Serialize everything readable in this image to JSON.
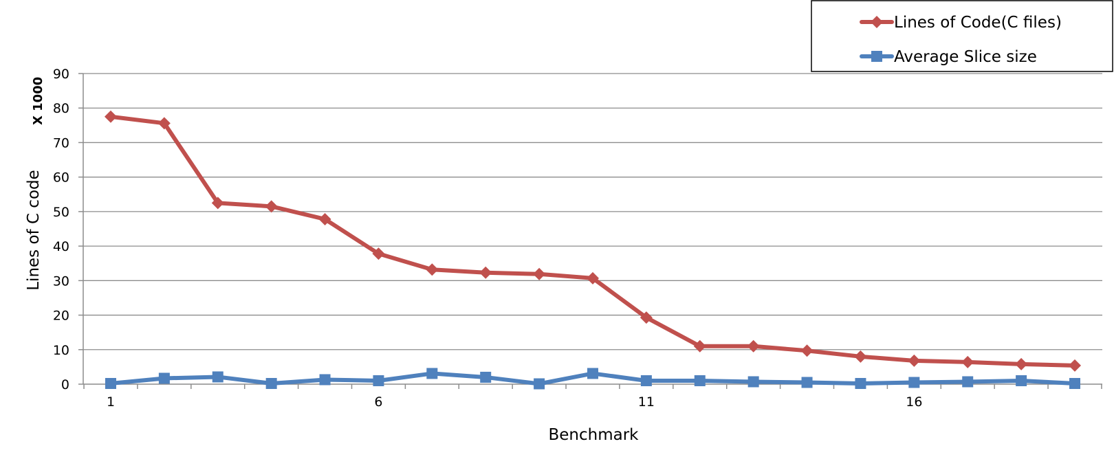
{
  "chart_data": {
    "type": "line",
    "xlabel": "Benchmark",
    "ylabel": "Lines of C code",
    "y_multiplier_label": "X 1000",
    "ylim": [
      0,
      90
    ],
    "yticks": [
      0,
      10,
      20,
      30,
      40,
      50,
      60,
      70,
      80,
      90
    ],
    "x": [
      1,
      2,
      3,
      4,
      5,
      6,
      7,
      8,
      9,
      10,
      11,
      12,
      13,
      14,
      15,
      16,
      17,
      18,
      19
    ],
    "xtick_labels": [
      "1",
      "6",
      "11",
      "16"
    ],
    "xtick_values": [
      1,
      6,
      11,
      16
    ],
    "grid": true,
    "legend_position": "top-right",
    "series": [
      {
        "name": "Lines of Code(C files)",
        "color": "#c0504d",
        "marker": "diamond",
        "values": [
          77.5,
          75.6,
          52.5,
          51.5,
          47.8,
          37.8,
          33.2,
          32.3,
          31.9,
          30.7,
          19.3,
          11.0,
          11.0,
          9.7,
          8.0,
          6.8,
          6.4,
          5.8,
          5.4
        ]
      },
      {
        "name": "Average Slice size",
        "color": "#4f81bd",
        "marker": "square",
        "values": [
          0.2,
          1.7,
          2.1,
          0.2,
          1.3,
          1.0,
          3.1,
          2.0,
          0.1,
          3.1,
          1.0,
          1.0,
          0.7,
          0.5,
          0.2,
          0.5,
          0.7,
          1.0,
          0.2
        ]
      }
    ]
  }
}
